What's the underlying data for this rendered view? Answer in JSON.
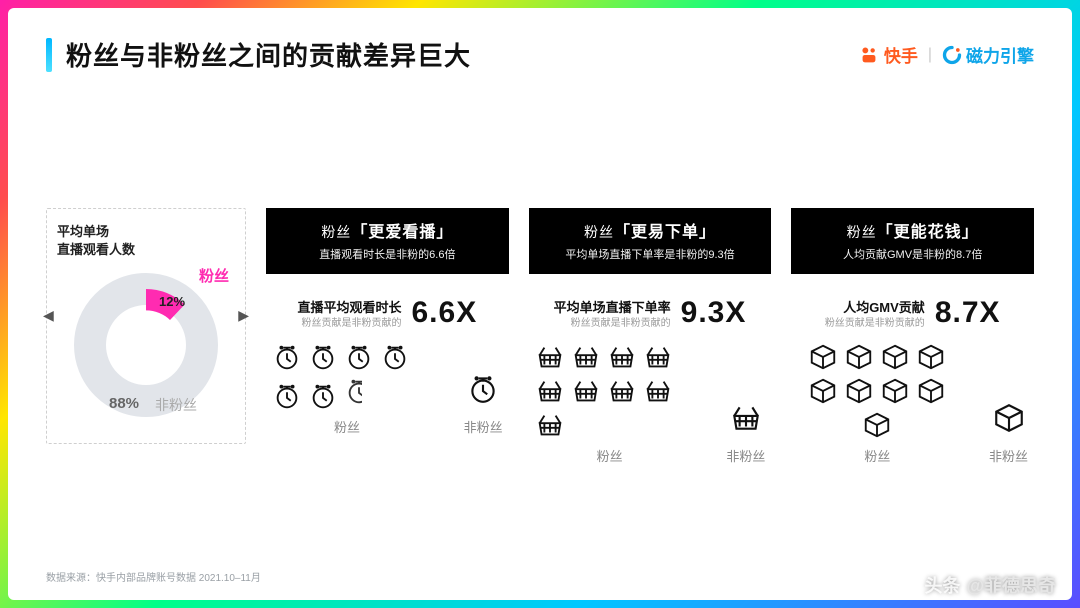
{
  "title": "粉丝与非粉丝之间的贡献差异巨大",
  "brand1": "快手",
  "brand2": "磁力引擎",
  "brand2_color": "#0ea5e9",
  "brand1_color": "#ff5a1f",
  "accent_gradient_from": "#00b7ff",
  "accent_gradient_to": "#4de0ff",
  "donut": {
    "title_l1": "平均单场",
    "title_l2": "直播观看人数",
    "fan_label": "粉丝",
    "fan_label_color": "#ff2bb1",
    "nonfan_label": "非粉丝",
    "fan_pct": 12,
    "fan_pct_text": "12%",
    "nonfan_pct": 88,
    "nonfan_pct_text": "88%",
    "ring_color": "#e2e5ea",
    "fan_slice_color": "#ff2bb1",
    "border_color": "#cfcfcf"
  },
  "metrics": [
    {
      "head_prefix": "粉丝",
      "head_main": "更爱看播",
      "head_sub": "直播观看时长是非粉的6.6倍",
      "stat_label_1": "直播平均观看时长",
      "stat_label_2": "粉丝贡献是非粉贡献的",
      "multiplier": "6.6X",
      "value": 6.6,
      "fan_count": 7,
      "partial": true,
      "icon": "clock",
      "fan_col": "粉丝",
      "nonfan_col": "非粉丝"
    },
    {
      "head_prefix": "粉丝",
      "head_main": "更易下单",
      "head_sub": "平均单场直播下单率是非粉的9.3倍",
      "stat_label_1": "平均单场直播下单率",
      "stat_label_2": "粉丝贡献是非粉贡献的",
      "multiplier": "9.3X",
      "value": 9.3,
      "fan_count": 9,
      "partial": false,
      "icon": "basket",
      "fan_col": "粉丝",
      "nonfan_col": "非粉丝"
    },
    {
      "head_prefix": "粉丝",
      "head_main": "更能花钱",
      "head_sub": "人均贡献GMV是非粉的8.7倍",
      "stat_label_1": "人均GMV贡献",
      "stat_label_2": "粉丝贡献是非粉贡献的",
      "multiplier": "8.7X",
      "value": 8.7,
      "fan_count": 9,
      "partial": false,
      "icon": "box",
      "fan_col": "粉丝",
      "nonfan_col": "非粉丝"
    }
  ],
  "footnote": "数据来源：快手内部品牌账号数据 2021.10–11月",
  "watermark_prefix": "头条",
  "watermark_at": "@菲德思奇",
  "icon_stroke": "#111111",
  "bg_white": "#ffffff",
  "text_muted": "#999999"
}
